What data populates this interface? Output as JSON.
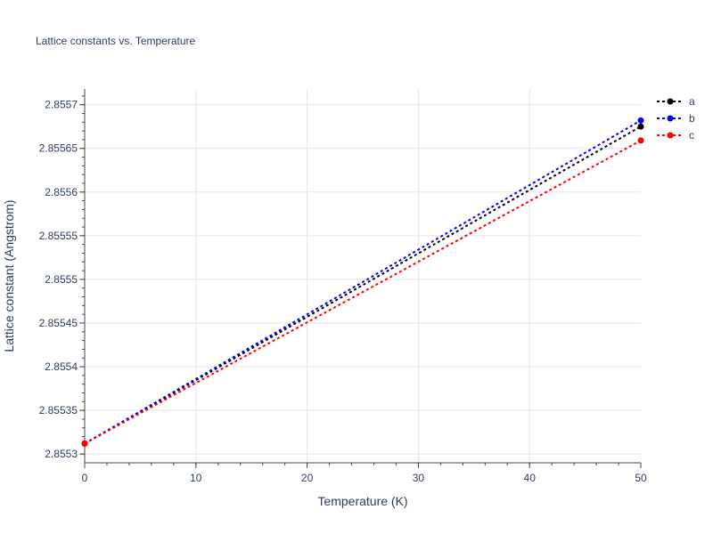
{
  "chart_data": {
    "type": "line",
    "title": "Lattice constants vs. Temperature",
    "xlabel": "Temperature (K)",
    "ylabel": "Lattice constant (Angstrom)",
    "xlim": [
      0,
      50
    ],
    "ylim": [
      2.85529,
      2.855718
    ],
    "x_ticks": [
      0,
      10,
      20,
      30,
      40,
      50
    ],
    "x_tick_labels": [
      "0",
      "10",
      "20",
      "30",
      "40",
      "50"
    ],
    "y_ticks": [
      2.8553,
      2.85535,
      2.8554,
      2.85545,
      2.8555,
      2.85555,
      2.8556,
      2.85565,
      2.8557
    ],
    "y_tick_labels": [
      "2.8553",
      "2.85535",
      "2.8554",
      "2.85545",
      "2.8555",
      "2.85555",
      "2.8556",
      "2.85565",
      "2.8557"
    ],
    "grid": true,
    "legend_position": "top-right",
    "line_style": "dotted",
    "marker": "circle",
    "series": [
      {
        "name": "a",
        "color": "#000000",
        "x": [
          0,
          50
        ],
        "y": [
          2.855312,
          2.855675
        ]
      },
      {
        "name": "b",
        "color": "#0000ff",
        "x": [
          0,
          50
        ],
        "y": [
          2.855312,
          2.855682
        ]
      },
      {
        "name": "c",
        "color": "#ff0000",
        "x": [
          0,
          50
        ],
        "y": [
          2.855312,
          2.855659
        ]
      }
    ]
  }
}
